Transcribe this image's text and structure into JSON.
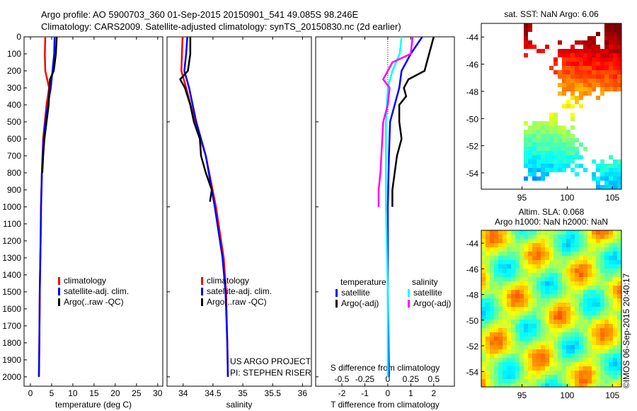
{
  "header": {
    "line1": "Argo profile: AO 5900703_360 01-Sep-2015 20150901_541 49.085S 98.246E",
    "line2": "Climatology: CARS2009. Satellite-adjusted climatology: synTS_20150830.nc (2d earlier)"
  },
  "credits": {
    "project": "US ARGO PROJECT",
    "pi": "PI: STEPHEN RISER",
    "stamp": "©IMOS 06-Sep-2015 20:40:17"
  },
  "colors": {
    "clim": "#ff0000",
    "sat": "#0000ff",
    "argo": "#000000",
    "ssat": "#00ffff",
    "sargo": "#ff00ff"
  },
  "chart_data": [
    {
      "type": "line",
      "id": "temp",
      "xlabel": "temperature (deg C)",
      "xlim": [
        -1.5,
        31.2
      ],
      "ylim": [
        0,
        2055
      ],
      "xticks": [
        0,
        5,
        10,
        15,
        20,
        25,
        30
      ],
      "yticks": [
        0,
        100,
        200,
        300,
        400,
        500,
        600,
        700,
        800,
        900,
        1000,
        1100,
        1200,
        1300,
        1400,
        1500,
        1600,
        1700,
        1800,
        1900,
        2000
      ],
      "legend": [
        "climatology",
        "satellite-adj. clim.",
        "Argo(..raw -QC)"
      ],
      "series": [
        {
          "name": "climatology",
          "color": "#ff0000",
          "depth": [
            0,
            100,
            200,
            300,
            400,
            500,
            600,
            800,
            1000,
            1200,
            1500,
            1800,
            2000
          ],
          "values": [
            3.5,
            3.4,
            3.5,
            4.4,
            3.8,
            3.4,
            3.0,
            2.7,
            2.5,
            2.4,
            2.2,
            2.1,
            2.0
          ]
        },
        {
          "name": "satellite-adj. clim.",
          "color": "#0000ff",
          "depth": [
            0,
            100,
            200,
            300,
            400,
            500,
            600,
            800,
            1000,
            1200,
            1500,
            1800,
            2000
          ],
          "values": [
            5.7,
            5.6,
            5.2,
            4.8,
            4.1,
            3.5,
            3.1,
            2.7,
            2.5,
            2.4,
            2.2,
            2.1,
            2.0
          ]
        },
        {
          "name": "Argo(..raw -QC)",
          "color": "#000000",
          "depth": [
            0,
            100,
            200,
            250,
            300,
            400,
            500,
            600,
            700,
            800
          ],
          "values": [
            6.2,
            6.0,
            5.5,
            4.6,
            4.5,
            4.3,
            3.8,
            3.3,
            3.0,
            2.8
          ]
        }
      ]
    },
    {
      "type": "line",
      "id": "sal",
      "xlabel": "salinity",
      "xlim": [
        33.73,
        36.15
      ],
      "ylim": [
        0,
        2055
      ],
      "xticks": [
        34,
        34.5,
        35,
        35.5,
        36
      ],
      "legend": [
        "climatology",
        "satellite-adj. clim.",
        "Argo(..raw -QC)"
      ],
      "series": [
        {
          "name": "climatology",
          "color": "#ff0000",
          "depth": [
            0,
            100,
            200,
            300,
            500,
            700,
            1000,
            1300,
            1500,
            1800,
            2000
          ],
          "values": [
            33.99,
            33.98,
            33.97,
            34.05,
            34.2,
            34.38,
            34.55,
            34.68,
            34.72,
            34.74,
            34.75
          ]
        },
        {
          "name": "satellite-adj. clim.",
          "color": "#0000ff",
          "depth": [
            0,
            100,
            200,
            300,
            500,
            700,
            1000,
            1300,
            1500,
            1800,
            2000
          ],
          "values": [
            34.07,
            34.05,
            34.02,
            34.1,
            34.22,
            34.38,
            34.53,
            34.66,
            34.71,
            34.74,
            34.75
          ]
        },
        {
          "name": "Argo(..raw -QC)",
          "color": "#000000",
          "depth": [
            0,
            100,
            150,
            200,
            250,
            300,
            400,
            500,
            600,
            700,
            800,
            900,
            970
          ],
          "values": [
            34.12,
            34.12,
            34.1,
            34.08,
            33.95,
            34.03,
            34.12,
            34.18,
            34.28,
            34.3,
            34.38,
            34.48,
            34.45
          ]
        }
      ]
    },
    {
      "type": "line",
      "id": "diff",
      "xlabel": "T difference from climatology",
      "xlabel2": "S difference from climatology",
      "xlim": [
        -3.14,
        2.9
      ],
      "ylim": [
        0,
        2055
      ],
      "xticks": [
        -2,
        -1,
        0,
        1,
        2
      ],
      "xticks2": [
        -0.5,
        -0.25,
        0,
        0.25,
        0.5
      ],
      "s_scale": 4,
      "legend": {
        "temp_title": "temperature",
        "sal_title": "salinity",
        "items": [
          "satellite",
          "Argo(-adj)",
          "satellite",
          "Argo(-adj)"
        ]
      },
      "series": [
        {
          "name": "T satellite",
          "color": "#0000ff",
          "depth": [
            0,
            100,
            200,
            300,
            400,
            500,
            700,
            1000,
            1500,
            2000
          ],
          "values": [
            1.5,
            1.0,
            0.6,
            0.5,
            0.3,
            0.1,
            0.05,
            0.0,
            0.0,
            0.05
          ]
        },
        {
          "name": "T Argo(-adj)",
          "color": "#000000",
          "depth": [
            0,
            100,
            200,
            250,
            300,
            350,
            400,
            500,
            600,
            700,
            800,
            900,
            1000
          ],
          "values": [
            2.0,
            1.8,
            1.6,
            0.9,
            0.7,
            0.8,
            0.5,
            0.5,
            0.6,
            0.4,
            0.3,
            0.2,
            0.2
          ]
        },
        {
          "name": "S satellite",
          "color": "#00ffff",
          "depth": [
            0,
            100,
            200,
            300,
            500,
            1000,
            1500,
            2000
          ],
          "values": [
            0.15,
            0.13,
            0.05,
            0.0,
            -0.02,
            -0.02,
            0.0,
            0.0
          ],
          "salinity": true
        },
        {
          "name": "S Argo(-adj)",
          "color": "#ff00ff",
          "depth": [
            0,
            100,
            150,
            250,
            300,
            400,
            500,
            600,
            800,
            900,
            1000
          ],
          "values": [
            0.27,
            0.25,
            0.05,
            -0.05,
            0.02,
            0.0,
            -0.05,
            -0.06,
            -0.08,
            -0.1,
            -0.1
          ],
          "salinity": true
        }
      ]
    },
    {
      "type": "heatmap",
      "id": "sst",
      "title": "sat. SST: NaN Argo: 6.06",
      "xlim": [
        90.5,
        106
      ],
      "ylim": [
        -55.2,
        -43
      ],
      "xticks": [
        95,
        100,
        105
      ],
      "yticks": [
        -44,
        -46,
        -48,
        -50,
        -52,
        -54
      ]
    },
    {
      "type": "heatmap",
      "id": "sla",
      "title1": "Altim. SLA: 0.068",
      "title2": "Argo h1000: NaN h2000: NaN",
      "xlim": [
        90.5,
        106
      ],
      "ylim": [
        -55.2,
        -43
      ],
      "xticks": [
        95,
        100,
        105
      ],
      "yticks": [
        -44,
        -46,
        -48,
        -50,
        -52,
        -54
      ]
    }
  ]
}
